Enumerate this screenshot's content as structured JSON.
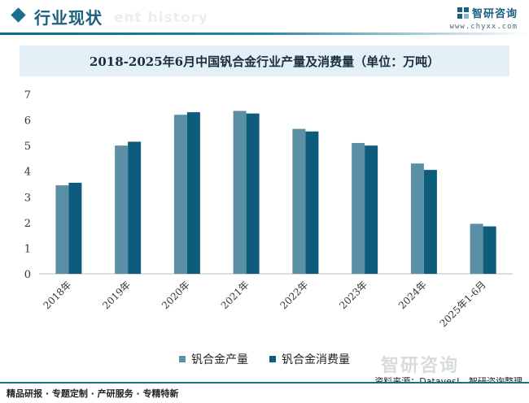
{
  "header": {
    "title": "行业现状",
    "ghost_text": "ent history",
    "brand_name": "智研咨询",
    "brand_url": "www.chyxx.com"
  },
  "chart_data": {
    "type": "bar",
    "title": "2018-2025年6月中国钒合金行业产量及消费量（单位：万吨）",
    "categories": [
      "2018年",
      "2019年",
      "2020年",
      "2021年",
      "2022年",
      "2023年",
      "2024年",
      "2025年1-6月"
    ],
    "series": [
      {
        "name": "钒合金产量",
        "values": [
          3.45,
          5.0,
          6.2,
          6.35,
          5.65,
          5.1,
          4.3,
          1.95
        ],
        "color": "#5b8fa5"
      },
      {
        "name": "钒合金消费量",
        "values": [
          3.55,
          5.15,
          6.3,
          6.25,
          5.55,
          5.0,
          4.05,
          1.85
        ],
        "color": "#0d5c7c"
      }
    ],
    "ylim": [
      0,
      7
    ],
    "yticks": [
      "0",
      "1",
      "2",
      "3",
      "4",
      "5",
      "6",
      "7"
    ],
    "grid": false,
    "legend_position": "bottom"
  },
  "watermark": {
    "text": "智研咨询"
  },
  "footer": {
    "left": "精品研报 · 专题定制 · 产研服务 · 专精特新",
    "source": "资料来源：Datayes!、智研咨询整理"
  },
  "colors": {
    "accent": "#1a6e8e",
    "title_bg": "#e3f0f8"
  }
}
